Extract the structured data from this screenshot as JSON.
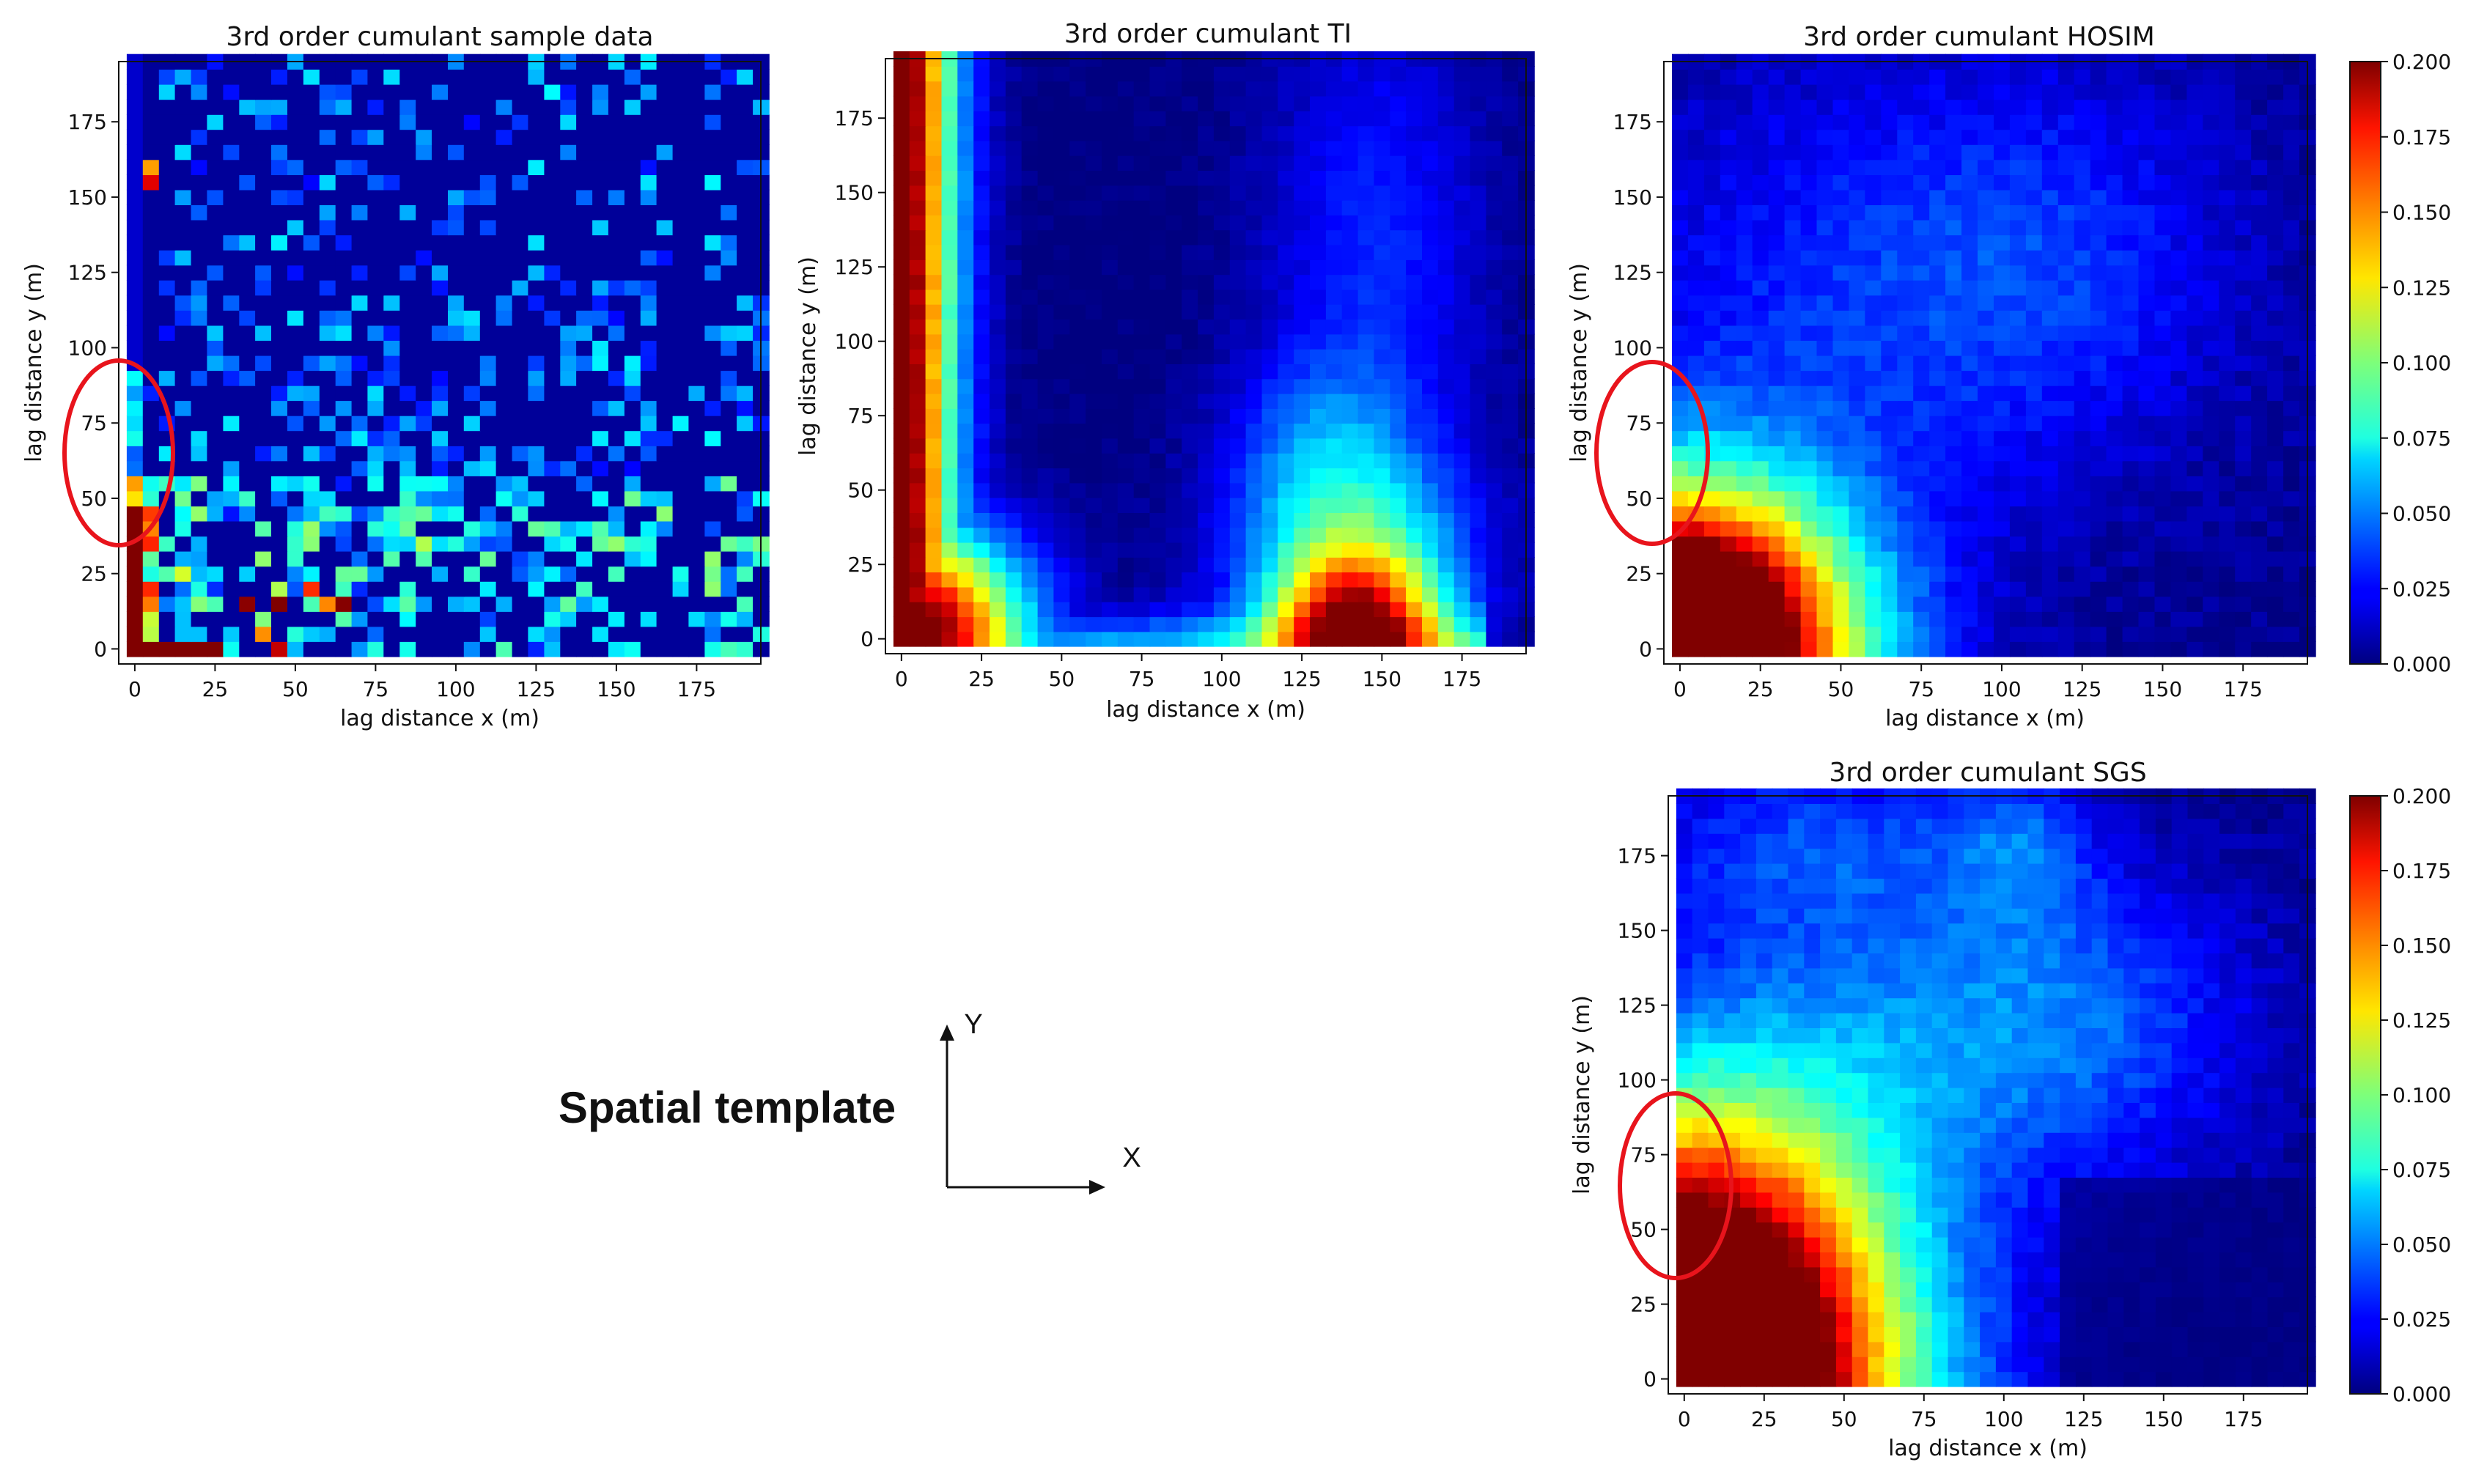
{
  "chart_data": [
    {
      "type": "heatmap",
      "id": "sample",
      "title": "3rd order cumulant sample data",
      "xlabel": "lag distance x (m)",
      "ylabel": "lag distance y (m)",
      "xlim": [
        -5,
        195
      ],
      "ylim": [
        -5,
        195
      ],
      "xticks": [
        0,
        25,
        50,
        75,
        100,
        125,
        150,
        175
      ],
      "yticks": [
        0,
        25,
        50,
        75,
        100,
        125,
        150,
        175
      ],
      "cell_size": 5,
      "value_range": [
        0.0,
        0.2
      ],
      "colormap": "jet",
      "highlight_circle": {
        "x": -3,
        "y": 65
      }
    },
    {
      "type": "heatmap",
      "id": "ti",
      "title": "3rd order cumulant TI",
      "xlabel": "lag distance x (m)",
      "ylabel": "lag distance y (m)",
      "xlim": [
        -5,
        195
      ],
      "ylim": [
        -5,
        195
      ],
      "xticks": [
        0,
        25,
        50,
        75,
        100,
        125,
        150,
        175
      ],
      "yticks": [
        0,
        25,
        50,
        75,
        100,
        125,
        150,
        175
      ],
      "cell_size": 5,
      "value_range": [
        0.0,
        0.2
      ],
      "colormap": "jet"
    },
    {
      "type": "heatmap",
      "id": "hosim",
      "title": "3rd order cumulant HOSIM",
      "xlabel": "lag distance x (m)",
      "ylabel": "lag distance y (m)",
      "xlim": [
        -5,
        195
      ],
      "ylim": [
        -5,
        195
      ],
      "xticks": [
        0,
        25,
        50,
        75,
        100,
        125,
        150,
        175
      ],
      "yticks": [
        0,
        25,
        50,
        75,
        100,
        125,
        150,
        175
      ],
      "cell_size": 5,
      "value_range": [
        0.0,
        0.2
      ],
      "colormap": "jet",
      "colorbar_ticks": [
        "0.000",
        "0.025",
        "0.050",
        "0.075",
        "0.100",
        "0.125",
        "0.150",
        "0.175",
        "0.200"
      ],
      "highlight_circle": {
        "x": -3,
        "y": 70
      }
    },
    {
      "type": "heatmap",
      "id": "sgs",
      "title": "3rd order cumulant SGS",
      "xlabel": "lag distance x (m)",
      "ylabel": "lag distance y (m)",
      "xlim": [
        -5,
        195
      ],
      "ylim": [
        -5,
        195
      ],
      "xticks": [
        0,
        25,
        50,
        75,
        100,
        125,
        150,
        175
      ],
      "yticks": [
        0,
        25,
        50,
        75,
        100,
        125,
        150,
        175
      ],
      "cell_size": 5,
      "value_range": [
        0.0,
        0.2
      ],
      "colormap": "jet",
      "colorbar_ticks": [
        "0.000",
        "0.025",
        "0.050",
        "0.075",
        "0.100",
        "0.125",
        "0.150",
        "0.175",
        "0.200"
      ],
      "highlight_circle": {
        "x": 0,
        "y": 70
      }
    }
  ],
  "template": {
    "label": "Spatial template",
    "x_axis": "X",
    "y_axis": "Y"
  },
  "colors": {
    "highlight": "#e8141c",
    "axis": "#111111"
  }
}
